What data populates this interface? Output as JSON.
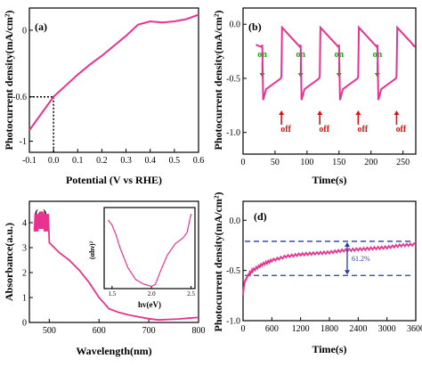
{
  "colors": {
    "series": "#e8338e",
    "on_arrow": "#1a9e1a",
    "off_arrow": "#e01010",
    "ref_line": "#1f3fae",
    "axis": "#000000"
  },
  "chart_data": [
    {
      "panel": "(a)",
      "type": "line",
      "xlabel": "Potential (V vs RHE)",
      "ylabel": "Photocurrent density(mA/cm²)",
      "xlim": [
        -0.1,
        0.6
      ],
      "ylim": [
        -1.1,
        0.2
      ],
      "xticks": [
        "-0.1",
        "0.0",
        "0.1",
        "0.2",
        "0.3",
        "0.4",
        "0.5",
        "0.6"
      ],
      "yticks": [
        "-1",
        "-0.6",
        "0"
      ],
      "x": [
        -0.1,
        -0.05,
        0.0,
        0.05,
        0.1,
        0.15,
        0.2,
        0.25,
        0.3,
        0.35,
        0.4,
        0.45,
        0.5,
        0.55,
        0.6
      ],
      "y": [
        -0.9,
        -0.75,
        -0.6,
        -0.5,
        -0.4,
        -0.31,
        -0.23,
        -0.14,
        -0.05,
        0.05,
        0.08,
        0.07,
        0.08,
        0.1,
        0.14
      ],
      "marker": {
        "x": 0.0,
        "y": -0.6
      }
    },
    {
      "panel": "(b)",
      "type": "line",
      "xlabel": "Time(s)",
      "ylabel": "Photocurrent density(mA/cm²)",
      "xlim": [
        0,
        270
      ],
      "ylim": [
        -1.2,
        0.15
      ],
      "xticks": [
        "0",
        "50",
        "100",
        "150",
        "200",
        "250"
      ],
      "yticks": [
        "0.0",
        "-0.5",
        "-1.0"
      ],
      "cycles": [
        {
          "on": 30,
          "off": 60
        },
        {
          "on": 90,
          "off": 120
        },
        {
          "on": 150,
          "off": 180
        },
        {
          "on": 210,
          "off": 240
        }
      ],
      "dark_level": -0.19,
      "peak_level": -0.7,
      "on_label": "on",
      "off_label": "off"
    },
    {
      "panel": "(c)",
      "type": "line",
      "xlabel": "Wavelength(nm)",
      "ylabel": "Absorbance(a.u.)",
      "xlim": [
        460,
        800
      ],
      "ylim": [
        0,
        4.5
      ],
      "xticks": [
        "500",
        "600",
        "700",
        "800"
      ],
      "yticks": [
        "0",
        "1",
        "2",
        "3",
        "4"
      ],
      "x": [
        470,
        480,
        490,
        500,
        520,
        540,
        560,
        580,
        600,
        620,
        640,
        660,
        680,
        700,
        720,
        740,
        760,
        780,
        800
      ],
      "y": [
        4.0,
        4.1,
        4.0,
        3.2,
        2.8,
        2.5,
        2.1,
        1.6,
        1.0,
        0.55,
        0.4,
        0.3,
        0.22,
        0.15,
        0.1,
        0.12,
        0.14,
        0.17,
        0.2
      ],
      "inset": {
        "type": "line",
        "xlabel": "hv(eV)",
        "ylabel": "(αhν)²",
        "xlim": [
          1.4,
          2.55
        ],
        "xticks": [
          "1.5",
          "2.0",
          "2.5"
        ],
        "x": [
          1.45,
          1.5,
          1.55,
          1.6,
          1.7,
          1.8,
          1.9,
          2.0,
          2.05,
          2.1,
          2.2,
          2.3,
          2.4,
          2.45,
          2.5
        ],
        "y": [
          0.92,
          0.85,
          0.72,
          0.55,
          0.28,
          0.12,
          0.06,
          0.03,
          0.06,
          0.2,
          0.45,
          0.6,
          0.68,
          0.75,
          1.0
        ]
      }
    },
    {
      "panel": "(d)",
      "type": "line",
      "xlabel": "Time(s)",
      "ylabel": "Photocurrent density(mA/cm²)",
      "xlim": [
        0,
        3600
      ],
      "ylim": [
        -1.0,
        0.1
      ],
      "xticks": [
        "0",
        "600",
        "1200",
        "1800",
        "2400",
        "3000",
        "3600"
      ],
      "yticks": [
        "0.0",
        "-0.5",
        "-1.0"
      ],
      "x": [
        0,
        30,
        100,
        200,
        400,
        600,
        900,
        1200,
        1500,
        1800,
        2100,
        2400,
        2700,
        3000,
        3300,
        3600
      ],
      "y": [
        -0.74,
        -0.62,
        -0.55,
        -0.5,
        -0.44,
        -0.4,
        -0.36,
        -0.34,
        -0.33,
        -0.32,
        -0.3,
        -0.29,
        -0.28,
        -0.27,
        -0.25,
        -0.24
      ],
      "ref_lines": [
        -0.21,
        -0.55
      ],
      "annotation": "61.2%"
    }
  ]
}
